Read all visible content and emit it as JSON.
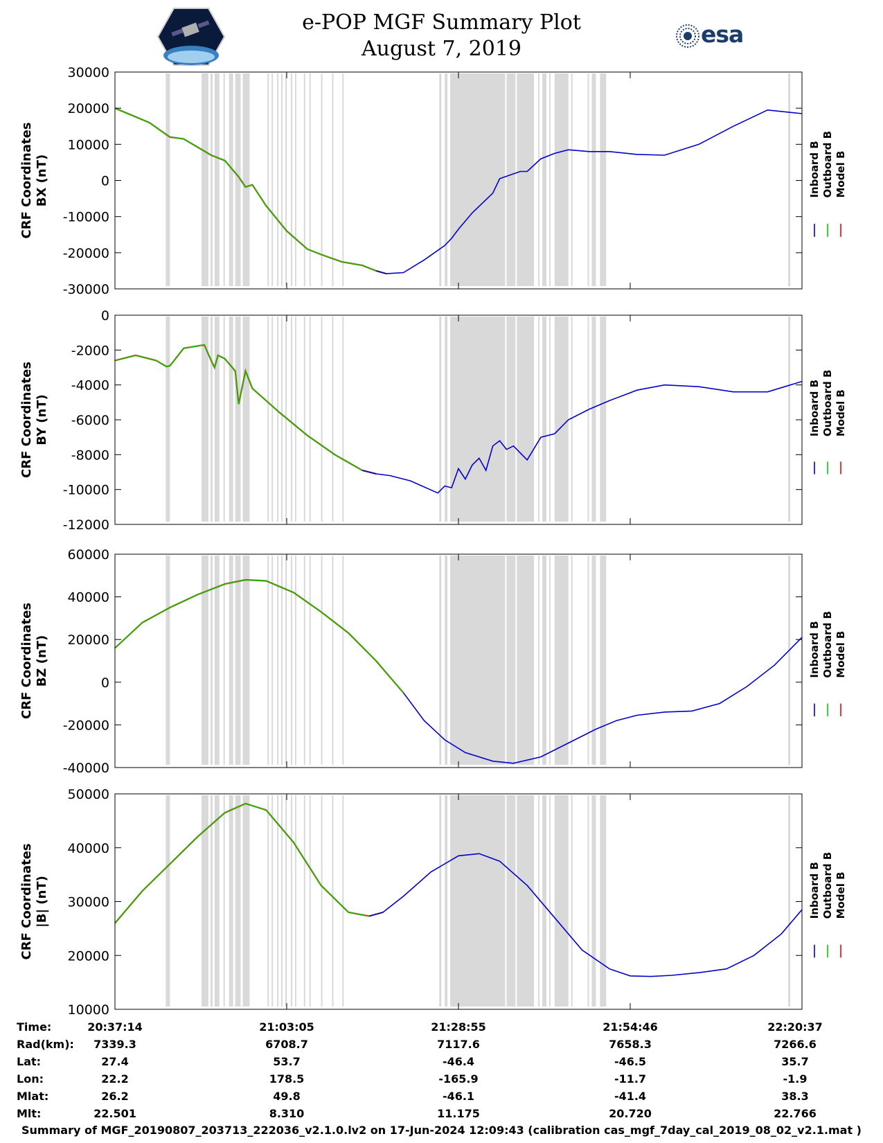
{
  "header": {
    "title_line1": "e-POP MGF Summary Plot",
    "title_line2": "August 7, 2019",
    "esa_logo_text": "esa"
  },
  "colors": {
    "inboard": "#0000cc",
    "outboard": "#00cc00",
    "model": "#ff0000",
    "gap_shading": "#d9d9d9"
  },
  "legend": [
    "Inboard B",
    "Outboard B",
    "Model B"
  ],
  "gap_intervals": [
    [
      0.074,
      0.08
    ],
    [
      0.126,
      0.136
    ],
    [
      0.139,
      0.142
    ],
    [
      0.145,
      0.152
    ],
    [
      0.158,
      0.16
    ],
    [
      0.166,
      0.172
    ],
    [
      0.175,
      0.183
    ],
    [
      0.186,
      0.196
    ],
    [
      0.222,
      0.224
    ],
    [
      0.228,
      0.23
    ],
    [
      0.236,
      0.238
    ],
    [
      0.242,
      0.244
    ],
    [
      0.248,
      0.25
    ],
    [
      0.256,
      0.258
    ],
    [
      0.262,
      0.264
    ],
    [
      0.275,
      0.277
    ],
    [
      0.283,
      0.285
    ],
    [
      0.3,
      0.302
    ],
    [
      0.316,
      0.318
    ],
    [
      0.331,
      0.333
    ],
    [
      0.472,
      0.475
    ],
    [
      0.48,
      0.484
    ],
    [
      0.488,
      0.568
    ],
    [
      0.57,
      0.583
    ],
    [
      0.585,
      0.61
    ],
    [
      0.616,
      0.618
    ],
    [
      0.622,
      0.628
    ],
    [
      0.632,
      0.634
    ],
    [
      0.64,
      0.66
    ],
    [
      0.664,
      0.666
    ],
    [
      0.688,
      0.69
    ],
    [
      0.694,
      0.7
    ],
    [
      0.706,
      0.715
    ],
    [
      0.98,
      0.983
    ]
  ],
  "chart_data": [
    {
      "type": "line",
      "ylabel": "CRF Coordinates BX (nT)",
      "ylim": [
        -30000,
        30000
      ],
      "yticks": [
        "30000",
        "20000",
        "10000",
        "0",
        "-10000",
        "-20000",
        "-30000"
      ],
      "switch_frac": 0.395,
      "x": [
        0,
        0.05,
        0.08,
        0.1,
        0.14,
        0.16,
        0.18,
        0.19,
        0.2,
        0.22,
        0.25,
        0.28,
        0.3,
        0.33,
        0.36,
        0.38,
        0.395,
        0.42,
        0.45,
        0.48,
        0.49,
        0.5,
        0.52,
        0.55,
        0.56,
        0.59,
        0.6,
        0.62,
        0.64,
        0.66,
        0.69,
        0.72,
        0.76,
        0.8,
        0.85,
        0.9,
        0.95,
        1.0
      ],
      "y": [
        20000,
        16000,
        12000,
        11500,
        7000,
        5500,
        1000,
        -1800,
        -1200,
        -7000,
        -14000,
        -19000,
        -20500,
        -22500,
        -23500,
        -25000,
        -25800,
        -25500,
        -22000,
        -18000,
        -16000,
        -13500,
        -9000,
        -3500,
        500,
        2500,
        2500,
        6000,
        7500,
        8500,
        8000,
        8000,
        7200,
        7000,
        10000,
        15000,
        19500,
        18500
      ]
    },
    {
      "type": "line",
      "ylabel": "CRF Coordinates BY (nT)",
      "ylim": [
        -12000,
        0
      ],
      "yticks": [
        "0",
        "-2000",
        "-4000",
        "-6000",
        "-8000",
        "-10000",
        "-12000"
      ],
      "switch_frac": 0.38,
      "x": [
        0,
        0.03,
        0.06,
        0.075,
        0.08,
        0.1,
        0.13,
        0.14,
        0.145,
        0.15,
        0.16,
        0.175,
        0.18,
        0.19,
        0.2,
        0.24,
        0.28,
        0.32,
        0.36,
        0.38,
        0.4,
        0.43,
        0.47,
        0.48,
        0.49,
        0.5,
        0.51,
        0.52,
        0.53,
        0.54,
        0.55,
        0.56,
        0.57,
        0.58,
        0.6,
        0.62,
        0.64,
        0.66,
        0.69,
        0.72,
        0.76,
        0.8,
        0.85,
        0.9,
        0.95,
        1.0
      ],
      "y": [
        -2600,
        -2300,
        -2600,
        -2950,
        -2900,
        -1900,
        -1700,
        -2600,
        -3000,
        -2300,
        -2500,
        -3200,
        -5100,
        -3200,
        -4200,
        -5600,
        -6900,
        -8000,
        -8900,
        -9100,
        -9200,
        -9500,
        -10200,
        -9800,
        -9900,
        -8800,
        -9400,
        -8600,
        -8200,
        -8900,
        -7500,
        -7200,
        -7700,
        -7500,
        -8300,
        -7000,
        -6800,
        -6000,
        -5400,
        -4900,
        -4300,
        -4000,
        -4100,
        -4400,
        -4400,
        -3800
      ]
    },
    {
      "type": "line",
      "ylabel": "CRF Coordinates BZ (nT)",
      "ylim": [
        -40000,
        60000
      ],
      "yticks": [
        "60000",
        "40000",
        "20000",
        "0",
        "-20000",
        "-40000"
      ],
      "switch_frac": 0.42,
      "x": [
        0,
        0.04,
        0.08,
        0.12,
        0.16,
        0.19,
        0.22,
        0.26,
        0.3,
        0.34,
        0.38,
        0.42,
        0.45,
        0.48,
        0.51,
        0.55,
        0.58,
        0.62,
        0.66,
        0.7,
        0.73,
        0.76,
        0.8,
        0.84,
        0.88,
        0.92,
        0.96,
        1.0
      ],
      "y": [
        16000,
        28000,
        35000,
        41000,
        46000,
        48000,
        47500,
        42000,
        33000,
        23000,
        10000,
        -5000,
        -18000,
        -27000,
        -33000,
        -37000,
        -38000,
        -35000,
        -28500,
        -22000,
        -18000,
        -15500,
        -14000,
        -13500,
        -10000,
        -2000,
        8000,
        21000
      ]
    },
    {
      "type": "line",
      "ylabel": "CRF Coordinates |B| (nT)",
      "ylim": [
        10000,
        50000
      ],
      "yticks": [
        "50000",
        "40000",
        "30000",
        "20000",
        "10000"
      ],
      "switch_frac": 0.39,
      "x": [
        0,
        0.04,
        0.08,
        0.12,
        0.16,
        0.19,
        0.22,
        0.26,
        0.3,
        0.34,
        0.37,
        0.39,
        0.42,
        0.46,
        0.5,
        0.53,
        0.56,
        0.6,
        0.64,
        0.68,
        0.72,
        0.75,
        0.78,
        0.81,
        0.85,
        0.89,
        0.93,
        0.97,
        1.0
      ],
      "y": [
        26000,
        32000,
        37000,
        42000,
        46500,
        48200,
        47000,
        41000,
        33000,
        28000,
        27300,
        28000,
        31000,
        35500,
        38500,
        38900,
        37500,
        33000,
        27000,
        21000,
        17500,
        16200,
        16100,
        16300,
        16800,
        17500,
        20000,
        24000,
        28500
      ]
    }
  ],
  "x_axis": {
    "label_col": [
      "Time:",
      "Rad(km):",
      "Lat:",
      "Lon:",
      "Mlat:",
      "Mlt:"
    ],
    "ticks": [
      {
        "Time": "20:37:14",
        "Rad": "7339.3",
        "Lat": "27.4",
        "Lon": "22.2",
        "Mlat": "26.2",
        "Mlt": "22.501"
      },
      {
        "Time": "21:03:05",
        "Rad": "6708.7",
        "Lat": "53.7",
        "Lon": "178.5",
        "Mlat": "49.8",
        "Mlt": "8.310"
      },
      {
        "Time": "21:28:55",
        "Rad": "7117.6",
        "Lat": "-46.4",
        "Lon": "-165.9",
        "Mlat": "-46.1",
        "Mlt": "11.175"
      },
      {
        "Time": "21:54:46",
        "Rad": "7658.3",
        "Lat": "-46.5",
        "Lon": "-11.7",
        "Mlat": "-41.4",
        "Mlt": "20.720"
      },
      {
        "Time": "22:20:37",
        "Rad": "7266.6",
        "Lat": "35.7",
        "Lon": "-1.9",
        "Mlat": "38.3",
        "Mlt": "22.766"
      }
    ]
  },
  "footer": "Summary of MGF_20190807_203713_222036_v2.1.0.lv2 on 17-Jun-2024 12:09:43 (calibration cas_mgf_7day_cal_2019_08_02_v2.1.mat )"
}
